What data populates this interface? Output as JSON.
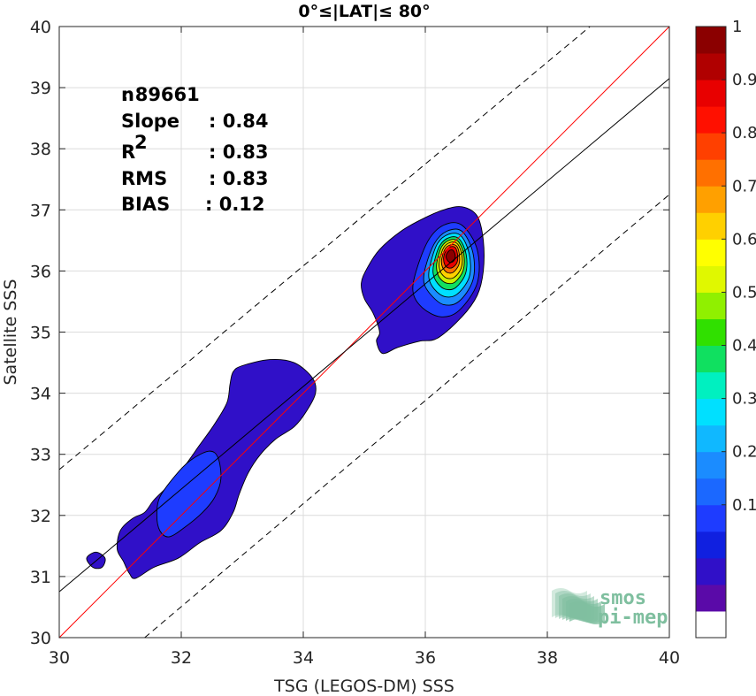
{
  "chart_data": {
    "type": "contour",
    "title": "0°≤|LAT|≤ 80°",
    "xlabel": "TSG (LEGOS-DM) SSS",
    "ylabel": "Satellite SSS",
    "xlim": [
      30,
      40
    ],
    "ylim": [
      30,
      40
    ],
    "xticks": [
      "30",
      "32",
      "34",
      "36",
      "38",
      "40"
    ],
    "yticks": [
      "30",
      "31",
      "32",
      "33",
      "34",
      "35",
      "36",
      "37",
      "38",
      "39",
      "40"
    ],
    "grid": true,
    "stats": [
      {
        "label": "n",
        "sep": ": ",
        "value": "89661"
      },
      {
        "label": "Slope",
        "sep": ": ",
        "value": "0.84"
      },
      {
        "label": "R",
        "sup": "2",
        "sep": ": ",
        "value": "0.83"
      },
      {
        "label": "RMS",
        "sep": ": ",
        "value": "0.83"
      },
      {
        "label": "BIAS",
        "sep": ": ",
        "value": "0.12"
      }
    ],
    "reference_lines": [
      {
        "kind": "identity",
        "color": "#ff0000",
        "style": "solid",
        "p1": [
          30,
          30
        ],
        "p2": [
          40,
          40
        ]
      },
      {
        "kind": "fit",
        "color": "#000000",
        "style": "solid",
        "p1": [
          30,
          30.75
        ],
        "p2": [
          40,
          39.15
        ]
      },
      {
        "kind": "upper-bound",
        "color": "#000000",
        "style": "dashed",
        "p1": [
          30,
          32.75
        ],
        "p2": [
          38.7,
          40
        ]
      },
      {
        "kind": "lower-bound",
        "color": "#000000",
        "style": "dashed",
        "p1": [
          31.4,
          30
        ],
        "p2": [
          40,
          37.25
        ]
      }
    ],
    "contours": [
      {
        "level": 0.05,
        "color": "#3010c8",
        "points": [
          [
            36.6,
            37.05
          ],
          [
            36.85,
            36.9
          ],
          [
            36.95,
            36.5
          ],
          [
            36.95,
            36.0
          ],
          [
            36.85,
            35.6
          ],
          [
            36.6,
            35.25
          ],
          [
            36.2,
            34.9
          ],
          [
            35.9,
            34.85
          ],
          [
            35.55,
            34.75
          ],
          [
            35.3,
            34.65
          ],
          [
            35.2,
            34.85
          ],
          [
            35.25,
            35.0
          ],
          [
            35.15,
            35.3
          ],
          [
            35.0,
            35.55
          ],
          [
            34.95,
            35.8
          ],
          [
            35.05,
            36.05
          ],
          [
            35.25,
            36.35
          ],
          [
            35.6,
            36.65
          ],
          [
            35.95,
            36.85
          ],
          [
            36.3,
            37.0
          ]
        ]
      },
      {
        "level": 0.05,
        "color": "#3010c8",
        "points": [
          [
            33.0,
            34.45
          ],
          [
            33.45,
            34.55
          ],
          [
            33.85,
            34.5
          ],
          [
            34.15,
            34.25
          ],
          [
            34.2,
            34.0
          ],
          [
            34.05,
            33.7
          ],
          [
            33.85,
            33.45
          ],
          [
            33.55,
            33.25
          ],
          [
            33.3,
            33.0
          ],
          [
            33.1,
            32.7
          ],
          [
            32.95,
            32.35
          ],
          [
            32.85,
            32.05
          ],
          [
            32.65,
            31.75
          ],
          [
            32.3,
            31.55
          ],
          [
            31.95,
            31.3
          ],
          [
            31.55,
            31.15
          ],
          [
            31.25,
            30.97
          ],
          [
            31.15,
            31.05
          ],
          [
            31.05,
            31.25
          ],
          [
            30.95,
            31.45
          ],
          [
            31.0,
            31.75
          ],
          [
            31.2,
            31.95
          ],
          [
            31.4,
            32.05
          ],
          [
            31.55,
            32.25
          ],
          [
            31.8,
            32.5
          ],
          [
            32.05,
            32.8
          ],
          [
            32.3,
            33.15
          ],
          [
            32.55,
            33.5
          ],
          [
            32.75,
            33.85
          ],
          [
            32.8,
            34.15
          ],
          [
            32.85,
            34.35
          ]
        ]
      },
      {
        "level": 0.05,
        "color": "#3010c8",
        "points": [
          [
            30.6,
            31.4
          ],
          [
            30.75,
            31.3
          ],
          [
            30.7,
            31.15
          ],
          [
            30.55,
            31.15
          ],
          [
            30.45,
            31.3
          ]
        ]
      },
      {
        "level": 0.15,
        "color": "#1e3cff",
        "points": [
          [
            31.65,
            32.3
          ],
          [
            31.9,
            32.65
          ],
          [
            32.15,
            32.9
          ],
          [
            32.45,
            33.05
          ],
          [
            32.6,
            32.95
          ],
          [
            32.65,
            32.6
          ],
          [
            32.55,
            32.3
          ],
          [
            32.35,
            32.05
          ],
          [
            32.05,
            31.8
          ],
          [
            31.8,
            31.65
          ],
          [
            31.65,
            31.75
          ],
          [
            31.6,
            32.0
          ]
        ]
      },
      {
        "level": 0.15,
        "color": "#1e3cff",
        "points": [
          [
            35.85,
            36.0
          ],
          [
            36.05,
            36.5
          ],
          [
            36.3,
            36.75
          ],
          [
            36.6,
            36.75
          ],
          [
            36.85,
            36.35
          ],
          [
            36.85,
            35.8
          ],
          [
            36.55,
            35.35
          ],
          [
            36.25,
            35.25
          ],
          [
            35.95,
            35.4
          ],
          [
            35.8,
            35.65
          ]
        ]
      },
      {
        "level": 0.25,
        "color": "#1b8cff",
        "points": [
          [
            36.0,
            36.05
          ],
          [
            36.15,
            36.45
          ],
          [
            36.35,
            36.65
          ],
          [
            36.6,
            36.65
          ],
          [
            36.78,
            36.3
          ],
          [
            36.78,
            35.85
          ],
          [
            36.55,
            35.5
          ],
          [
            36.3,
            35.45
          ],
          [
            36.1,
            35.6
          ],
          [
            35.98,
            35.8
          ]
        ]
      },
      {
        "level": 0.35,
        "color": "#00e0ff",
        "points": [
          [
            36.08,
            36.1
          ],
          [
            36.2,
            36.45
          ],
          [
            36.38,
            36.6
          ],
          [
            36.58,
            36.58
          ],
          [
            36.72,
            36.28
          ],
          [
            36.72,
            35.9
          ],
          [
            36.52,
            35.62
          ],
          [
            36.32,
            35.58
          ],
          [
            36.15,
            35.7
          ],
          [
            36.06,
            35.88
          ]
        ]
      },
      {
        "level": 0.45,
        "color": "#10e060",
        "points": [
          [
            36.14,
            36.12
          ],
          [
            36.24,
            36.42
          ],
          [
            36.4,
            36.55
          ],
          [
            36.56,
            36.52
          ],
          [
            36.67,
            36.27
          ],
          [
            36.66,
            35.96
          ],
          [
            36.5,
            35.73
          ],
          [
            36.33,
            35.7
          ],
          [
            36.2,
            35.8
          ],
          [
            36.13,
            35.95
          ]
        ]
      },
      {
        "level": 0.55,
        "color": "#c8f000",
        "points": [
          [
            36.19,
            36.14
          ],
          [
            36.27,
            36.4
          ],
          [
            36.41,
            36.51
          ],
          [
            36.54,
            36.48
          ],
          [
            36.63,
            36.27
          ],
          [
            36.62,
            36.01
          ],
          [
            36.49,
            35.82
          ],
          [
            36.35,
            35.8
          ],
          [
            36.24,
            35.88
          ],
          [
            36.19,
            36.0
          ]
        ]
      },
      {
        "level": 0.65,
        "color": "#ffd000",
        "points": [
          [
            36.23,
            36.16
          ],
          [
            36.3,
            36.38
          ],
          [
            36.42,
            36.47
          ],
          [
            36.53,
            36.44
          ],
          [
            36.6,
            36.26
          ],
          [
            36.59,
            36.05
          ],
          [
            36.48,
            35.9
          ],
          [
            36.36,
            35.88
          ],
          [
            36.27,
            35.95
          ],
          [
            36.23,
            36.05
          ]
        ]
      },
      {
        "level": 0.75,
        "color": "#ff7000",
        "points": [
          [
            36.27,
            36.2
          ],
          [
            36.33,
            36.37
          ],
          [
            36.43,
            36.43
          ],
          [
            36.52,
            36.4
          ],
          [
            36.56,
            36.25
          ],
          [
            36.55,
            36.1
          ],
          [
            36.46,
            35.98
          ],
          [
            36.37,
            35.97
          ],
          [
            36.3,
            36.03
          ],
          [
            36.27,
            36.1
          ]
        ]
      },
      {
        "level": 0.85,
        "color": "#e80000",
        "points": [
          [
            36.3,
            36.22
          ],
          [
            36.35,
            36.35
          ],
          [
            36.43,
            36.4
          ],
          [
            36.5,
            36.37
          ],
          [
            36.53,
            36.25
          ],
          [
            36.52,
            36.14
          ],
          [
            36.45,
            36.06
          ],
          [
            36.38,
            36.05
          ],
          [
            36.32,
            36.1
          ]
        ]
      },
      {
        "level": 0.95,
        "color": "#8b0000",
        "points": [
          [
            36.34,
            36.25
          ],
          [
            36.39,
            36.33
          ],
          [
            36.45,
            36.34
          ],
          [
            36.49,
            36.26
          ],
          [
            36.47,
            36.17
          ],
          [
            36.41,
            36.14
          ],
          [
            36.36,
            36.18
          ]
        ]
      }
    ],
    "colorbar": {
      "ticks": [
        "0.1",
        "0.2",
        "0.3",
        "0.4",
        "0.5",
        "0.6",
        "0.7",
        "0.8",
        "0.9",
        "1"
      ],
      "colors": [
        "#ffffff",
        "#5a0aa8",
        "#3010c8",
        "#1020e0",
        "#1e3cff",
        "#1b68ff",
        "#1b8cff",
        "#10b8ff",
        "#00e0ff",
        "#00f0c0",
        "#10e060",
        "#30e000",
        "#90f000",
        "#e0f800",
        "#ffff00",
        "#ffd000",
        "#ffa000",
        "#ff7000",
        "#ff4000",
        "#ff1000",
        "#e80000",
        "#b00000",
        "#8b0000"
      ]
    }
  },
  "watermark": {
    "line1": "smos",
    "line2": "pi-mep",
    "color": "#7fbf9f"
  }
}
